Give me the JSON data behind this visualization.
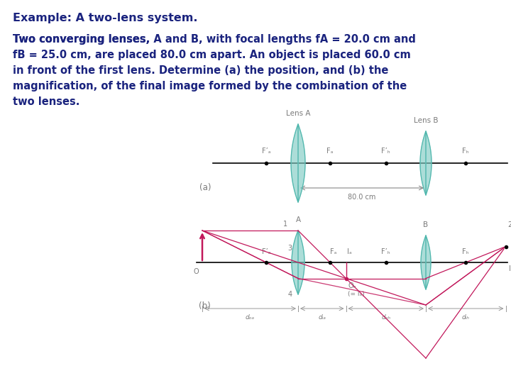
{
  "bg_color": "#ffffff",
  "text_color": "#1a237e",
  "lens_color": "#80cbc4",
  "lens_edge_color": "#4db6ac",
  "ray_color": "#c2185b",
  "axis_color": "#000000",
  "dot_color": "#000000",
  "label_color": "#7a7a7a",
  "title": "Example: A two-lens system.",
  "line1": "Two converging lenses, A and B, with focal lengths f",
  "line1_sub": "A",
  "line1_end": " = 20.0 cm and",
  "line2": "f",
  "line2_sub": "B",
  "line2_end": " = 25.0 cm, are placed 80.0 cm apart. An object is placed 60.0 cm",
  "line3": "in front of the first lens. Determine (a) the position, and (b) the",
  "line4": "magnification, of the final image formed by the combination of the",
  "line5": "two lenses.",
  "lens_a_label": "Lens A",
  "lens_b_label": "Lens B",
  "dist_label": "80.0 cm",
  "label_a": "A",
  "label_b": "B",
  "label_o": "O",
  "label_ob": "O",
  "label_ib": "I",
  "label_ia": "I",
  "dist_oA": "d",
  "dist_iA": "d",
  "dist_oB": "d",
  "dist_iB": "d"
}
